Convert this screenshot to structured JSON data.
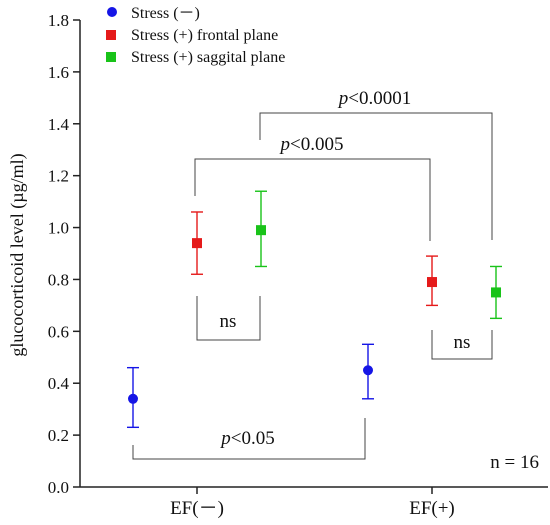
{
  "chart_data": {
    "type": "scatter",
    "ylabel": "glucocorticoid level (µg/ml)",
    "ylim": [
      0.0,
      1.8
    ],
    "yticks": [
      "0.0",
      "0.2",
      "0.4",
      "0.6",
      "0.8",
      "1.0",
      "1.2",
      "1.4",
      "1.6",
      "1.8"
    ],
    "categories": [
      "EF(－)",
      "EF(+)"
    ],
    "legend_position": "top-left",
    "grid": false,
    "series": [
      {
        "name": "Stress (－)",
        "marker": "circle",
        "color": "#1515e6",
        "points": [
          {
            "category": "EF(－)",
            "value": 0.34,
            "low": 0.23,
            "high": 0.46
          },
          {
            "category": "EF(+)",
            "value": 0.45,
            "low": 0.34,
            "high": 0.55
          }
        ]
      },
      {
        "name": "Stress (+) frontal plane",
        "marker": "square",
        "color": "#e51a1a",
        "points": [
          {
            "category": "EF(－)",
            "value": 0.94,
            "low": 0.82,
            "high": 1.06
          },
          {
            "category": "EF(+)",
            "value": 0.79,
            "low": 0.7,
            "high": 0.89
          }
        ]
      },
      {
        "name": "Stress (+) saggital plane",
        "marker": "square",
        "color": "#19c319",
        "points": [
          {
            "category": "EF(－)",
            "value": 0.99,
            "low": 0.85,
            "high": 1.14
          },
          {
            "category": "EF(+)",
            "value": 0.75,
            "low": 0.65,
            "high": 0.85
          }
        ]
      }
    ],
    "annotations": {
      "p_0001": {
        "italic": "p",
        "rest": "<0.0001"
      },
      "p_005": {
        "italic": "p",
        "rest": "<0.005"
      },
      "p_05": {
        "italic": "p",
        "rest": "<0.05"
      },
      "ns": "ns",
      "n": "n = 16"
    }
  }
}
